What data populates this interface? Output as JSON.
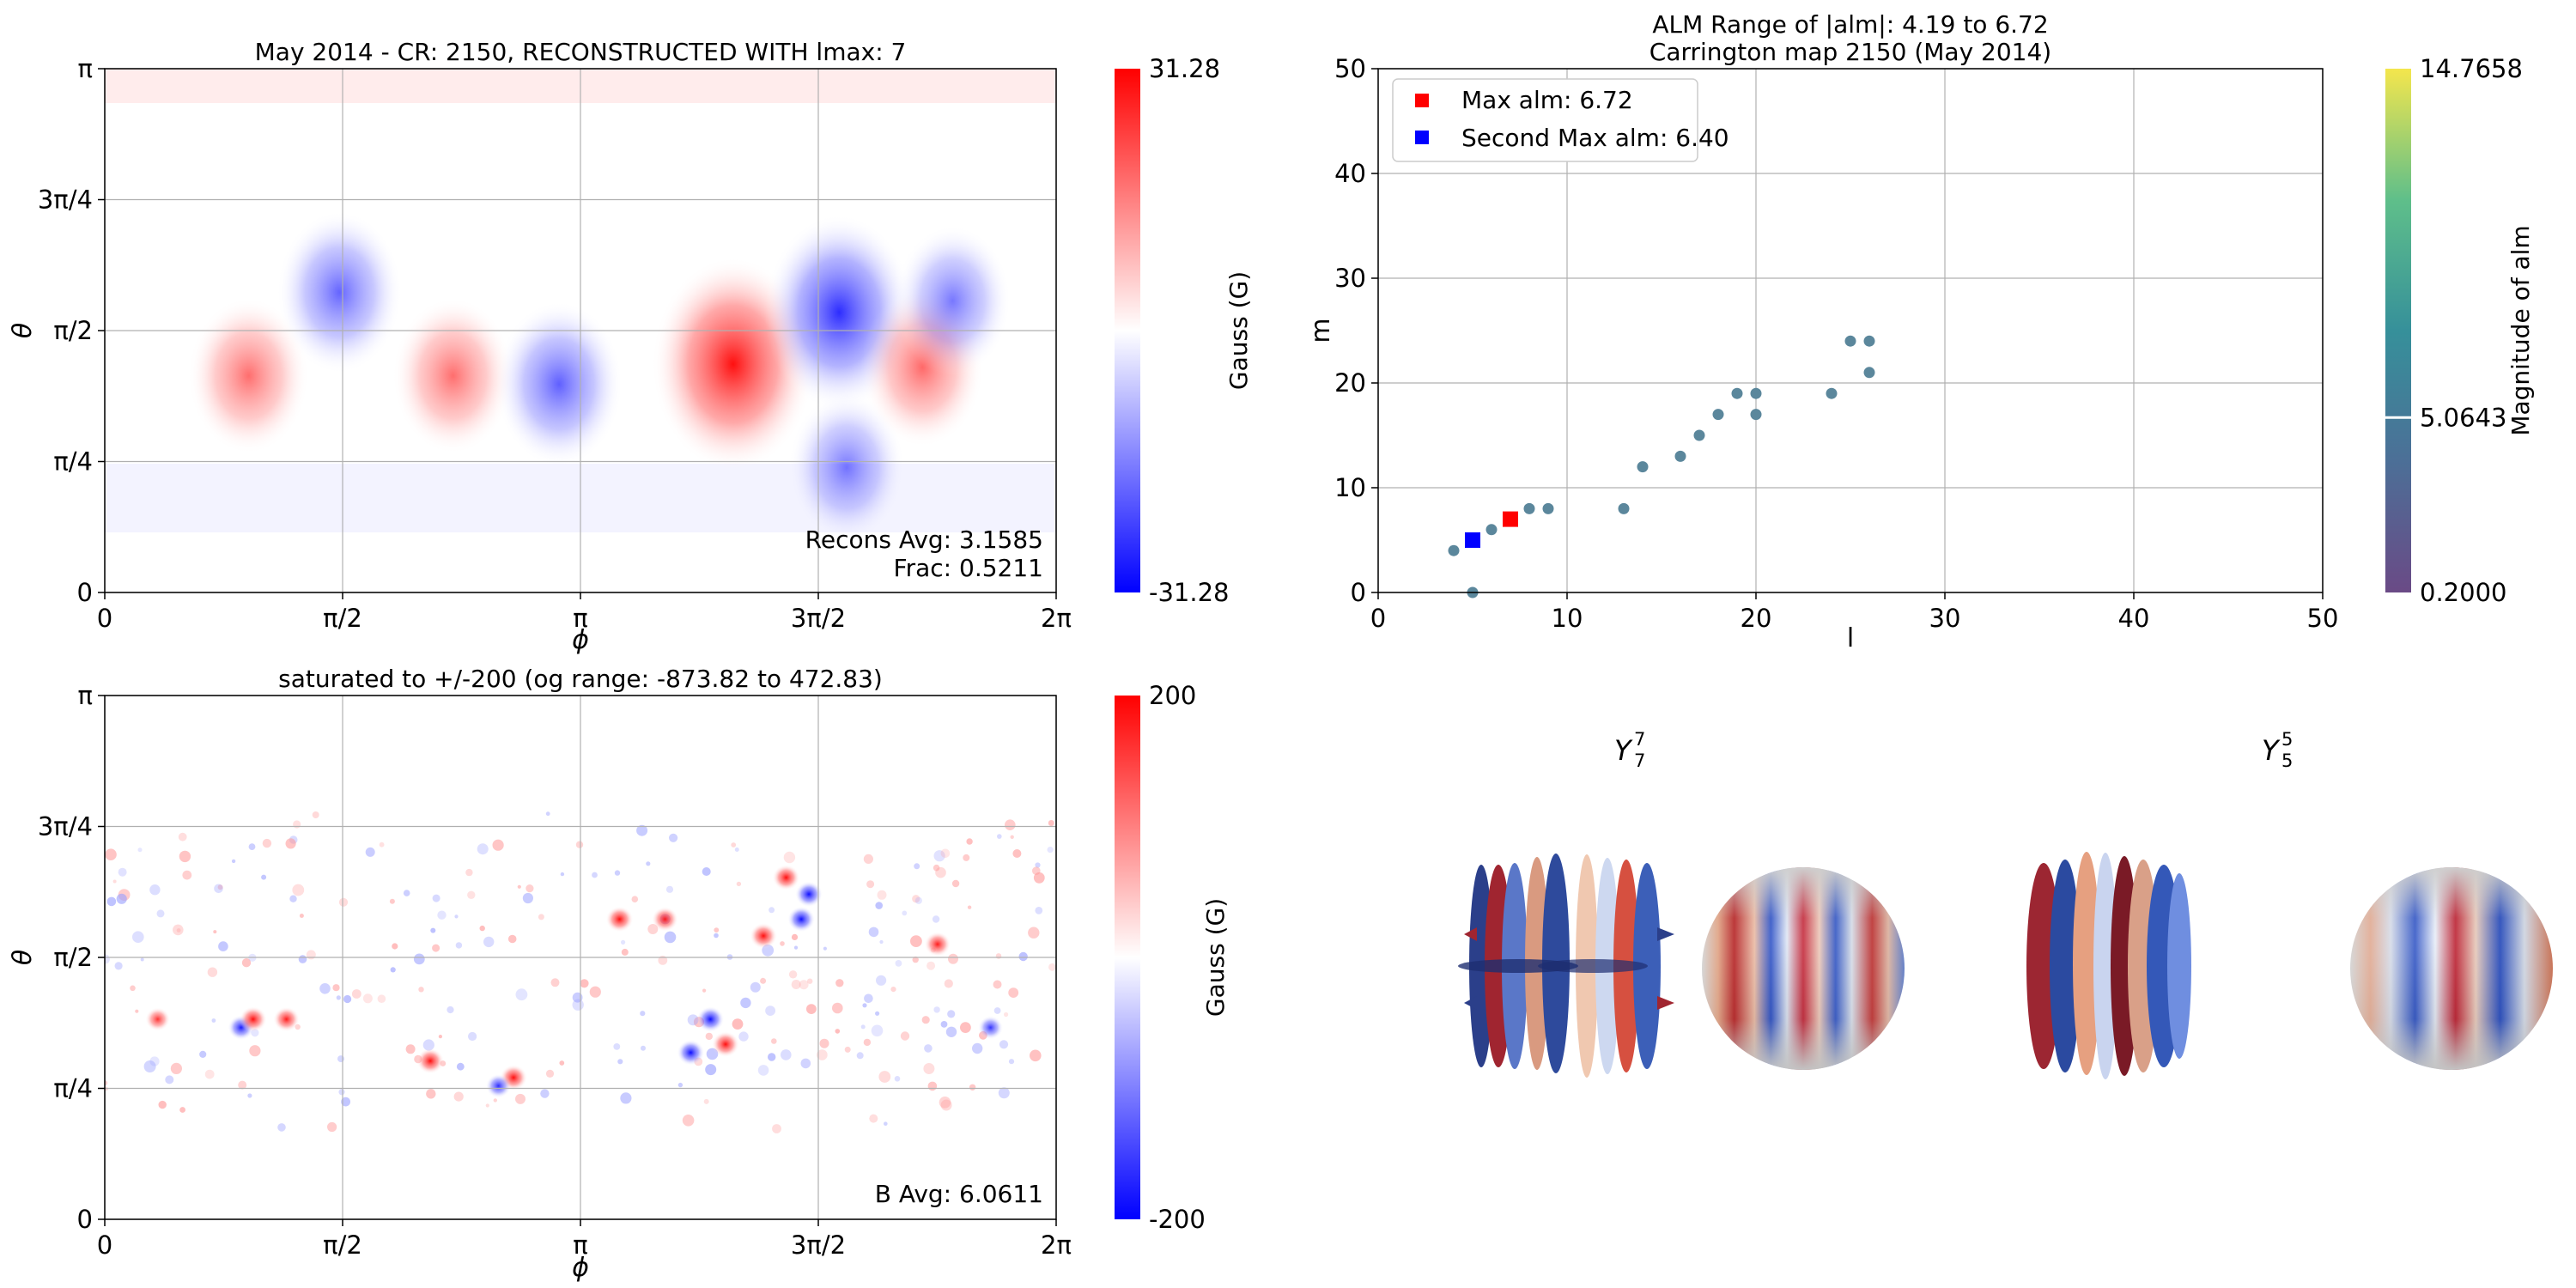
{
  "colors": {
    "diverging_neg": "#0000ff",
    "diverging_mid": "#ffffff",
    "diverging_pos": "#ff0000",
    "scatter_point": "#5b879c",
    "max_marker": "#ff0000",
    "second_marker": "#0000ff",
    "grid": "#b0b0b0"
  },
  "chart_data": [
    {
      "type": "heatmap",
      "title": "May 2014 - CR: 2150, RECONSTRUCTED WITH lmax: 7",
      "xlabel": "ϕ",
      "ylabel": "θ",
      "xtick_labels": [
        "0",
        "π/2",
        "π",
        "3π/2",
        "2π"
      ],
      "ytick_labels": [
        "0",
        "π/4",
        "π/2",
        "3π/4",
        "π"
      ],
      "xlim": [
        0,
        6.2832
      ],
      "ylim": [
        0,
        3.1416
      ],
      "grid": true,
      "colormap": "bwr",
      "colorbar": {
        "label": "Gauss (G)",
        "min": -31.28,
        "max": 31.28,
        "min_label": "-31.28",
        "max_label": "31.28"
      },
      "annotations": [
        "Recons Avg: 3.1585",
        "Frac: 0.5211"
      ],
      "features": [
        {
          "phi": 0.95,
          "theta": 1.3,
          "value": 12
        },
        {
          "phi": 1.55,
          "theta": 1.8,
          "value": -14
        },
        {
          "phi": 2.3,
          "theta": 1.3,
          "value": 12
        },
        {
          "phi": 3.0,
          "theta": 1.25,
          "value": -15
        },
        {
          "phi": 4.15,
          "theta": 1.37,
          "value": 31
        },
        {
          "phi": 4.85,
          "theta": 1.68,
          "value": -25
        },
        {
          "phi": 5.4,
          "theta": 1.35,
          "value": 13
        },
        {
          "phi": 5.6,
          "theta": 1.75,
          "value": -10
        },
        {
          "phi": 4.9,
          "theta": 0.75,
          "value": -10
        }
      ]
    },
    {
      "type": "scatter",
      "title": "ALM Range of |alm|: 4.19 to 6.72",
      "subtitle": "Carrington map 2150 (May 2014)",
      "xlabel": "l",
      "ylabel": "m",
      "xlim": [
        0,
        50
      ],
      "ylim": [
        0,
        50
      ],
      "xticks": [
        0,
        10,
        20,
        30,
        40,
        50
      ],
      "yticks": [
        0,
        10,
        20,
        30,
        40,
        50
      ],
      "grid": true,
      "legend_position": "top-left",
      "legend": [
        "Max alm: 6.72",
        "Second Max alm: 6.40"
      ],
      "highlight_points": [
        {
          "name": "Max alm: 6.72",
          "l": 7,
          "m": 7
        },
        {
          "name": "Second Max alm: 6.40",
          "l": 5,
          "m": 5
        }
      ],
      "points": [
        [
          4,
          4
        ],
        [
          5,
          0
        ],
        [
          6,
          6
        ],
        [
          8,
          8
        ],
        [
          9,
          8
        ],
        [
          13,
          8
        ],
        [
          14,
          12
        ],
        [
          16,
          13
        ],
        [
          17,
          15
        ],
        [
          18,
          17
        ],
        [
          19,
          19
        ],
        [
          20,
          19
        ],
        [
          20,
          17
        ],
        [
          24,
          19
        ],
        [
          25,
          24
        ],
        [
          26,
          24
        ],
        [
          26,
          21
        ]
      ],
      "colorbar": {
        "label": "Magnitude of alm",
        "min": 0.2,
        "max": 14.7658,
        "marker": 5.0643,
        "min_label": "0.2000",
        "max_label": "14.7658",
        "marker_label": "5.0643"
      }
    },
    {
      "type": "heatmap",
      "title": "saturated to +/-200 (og range: -873.82 to 472.83)",
      "xlabel": "ϕ",
      "ylabel": "θ",
      "xtick_labels": [
        "0",
        "π/2",
        "π",
        "3π/2",
        "2π"
      ],
      "ytick_labels": [
        "0",
        "π/4",
        "π/2",
        "3π/4",
        "π"
      ],
      "xlim": [
        0,
        6.2832
      ],
      "ylim": [
        0,
        3.1416
      ],
      "grid": true,
      "colormap": "bwr",
      "colorbar": {
        "label": "Gauss (G)",
        "min": -200,
        "max": 200,
        "min_label": "-200",
        "max_label": "200"
      },
      "annotations": [
        "B Avg: 6.0611"
      ],
      "features": [
        {
          "phi": 0.35,
          "theta": 1.2,
          "value": 150
        },
        {
          "phi": 0.9,
          "theta": 1.15,
          "value": -180
        },
        {
          "phi": 0.98,
          "theta": 1.2,
          "value": 200
        },
        {
          "phi": 1.2,
          "theta": 1.2,
          "value": 180
        },
        {
          "phi": 2.15,
          "theta": 0.95,
          "value": 200
        },
        {
          "phi": 2.7,
          "theta": 0.85,
          "value": 200
        },
        {
          "phi": 2.6,
          "theta": 0.8,
          "value": -160
        },
        {
          "phi": 3.4,
          "theta": 1.8,
          "value": 200
        },
        {
          "phi": 3.7,
          "theta": 1.8,
          "value": 180
        },
        {
          "phi": 3.87,
          "theta": 1.0,
          "value": -200
        },
        {
          "phi": 4.0,
          "theta": 1.2,
          "value": -200
        },
        {
          "phi": 4.1,
          "theta": 1.05,
          "value": 200
        },
        {
          "phi": 4.35,
          "theta": 1.7,
          "value": 200
        },
        {
          "phi": 4.5,
          "theta": 2.05,
          "value": 200
        },
        {
          "phi": 4.65,
          "theta": 1.95,
          "value": -200
        },
        {
          "phi": 4.6,
          "theta": 1.8,
          "value": -200
        },
        {
          "phi": 5.5,
          "theta": 1.65,
          "value": 180
        },
        {
          "phi": 5.85,
          "theta": 1.15,
          "value": -150
        }
      ]
    },
    {
      "type": "other",
      "labels": [
        "Y",
        "7",
        "7",
        "Y",
        "5",
        "5"
      ],
      "harmonics": [
        {
          "l": 7,
          "m": 7,
          "label_main": "Y",
          "sub": "7",
          "sup": "7"
        },
        {
          "l": 5,
          "m": 5,
          "label_main": "Y",
          "sub": "5",
          "sup": "5"
        }
      ]
    }
  ]
}
